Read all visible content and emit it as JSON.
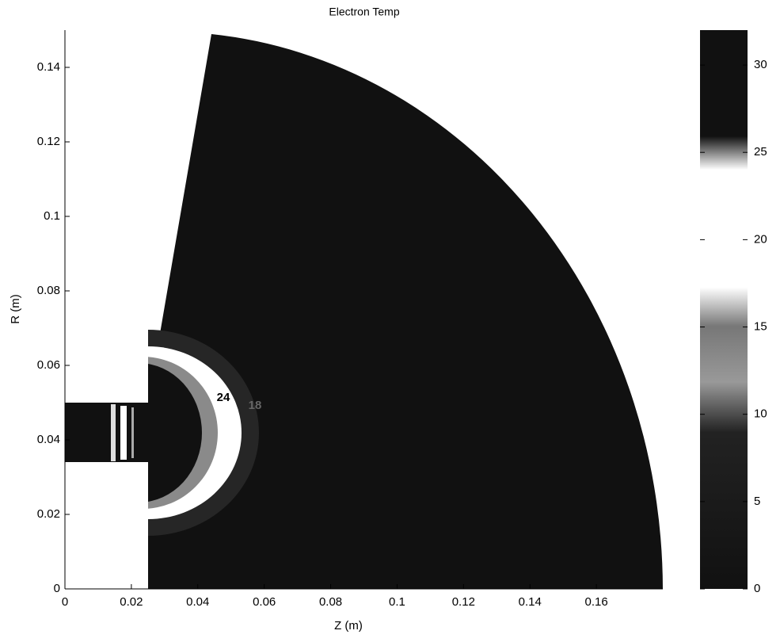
{
  "chart_data": {
    "type": "field",
    "title": "Electron Temp",
    "xlabel": "Z (m)",
    "ylabel": "R (m)",
    "xlim": [
      0,
      0.18
    ],
    "xticks": [
      0,
      0.02,
      0.04,
      0.06,
      0.08,
      0.1,
      0.12,
      0.14,
      0.16
    ],
    "ylim": [
      0,
      0.15
    ],
    "yticks": [
      0,
      0.02,
      0.04,
      0.06,
      0.08,
      0.1,
      0.12,
      0.14
    ],
    "clim": [
      0,
      32
    ],
    "cticks": [
      0,
      5,
      10,
      15,
      20,
      25,
      30
    ],
    "contour_labels": [
      24,
      18
    ]
  }
}
